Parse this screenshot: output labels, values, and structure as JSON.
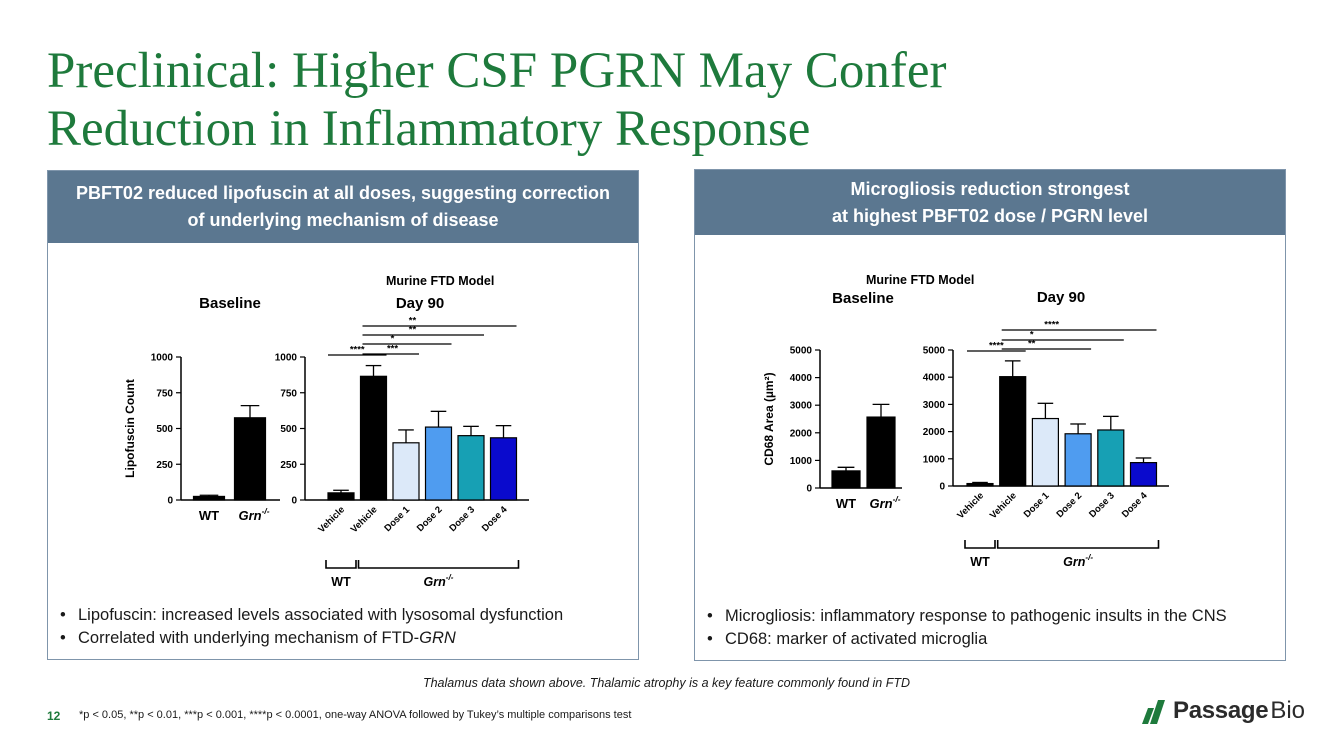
{
  "slide": {
    "title_line1": "Preclinical: Higher CSF PGRN May Confer",
    "title_line2": "Reduction in Inflammatory Response",
    "page_number": "12",
    "footnote_center": "Thalamus data shown above. Thalamic atrophy is a key feature commonly found in FTD",
    "stats_note": "*p < 0.05, **p < 0.01, ***p < 0.001, ****p < 0.0001, one-way ANOVA followed by Tukey’s multiple comparisons test",
    "logo": {
      "word1": "Passage",
      "word2": "Bio",
      "color": "#1e7a3c"
    }
  },
  "left_panel": {
    "header_line1": "PBFT02 reduced lipofuscin at all doses, suggesting correction",
    "header_line2": "of underlying mechanism of disease",
    "bullets": [
      "Lipofuscin: increased levels associated with lysosomal dysfunction",
      "Correlated with underlying mechanism of FTD-GRN"
    ]
  },
  "right_panel": {
    "header_line1": "Microgliosis reduction strongest",
    "header_line2": "at highest PBFT02 dose / PGRN level",
    "bullets": [
      "Microgliosis: inflammatory response to pathogenic insults in the CNS",
      "CD68: marker of activated microglia"
    ]
  },
  "chart_data": [
    {
      "type": "bar",
      "id": "lipofuscin-baseline",
      "suptitle": "Murine FTD Model",
      "title": "Baseline",
      "ylabel": "Lipofuscin Count",
      "ylim": [
        0,
        1000
      ],
      "yticks": [
        0,
        250,
        500,
        750,
        1000
      ],
      "categories": [
        "WT",
        "Grn-/-"
      ],
      "values": [
        25,
        575
      ],
      "errors": [
        8,
        85
      ],
      "colors": [
        "#000000",
        "#000000"
      ]
    },
    {
      "type": "bar",
      "id": "lipofuscin-day90",
      "title": "Day 90",
      "ylabel": "",
      "ylim": [
        0,
        1000
      ],
      "yticks": [
        0,
        250,
        500,
        750,
        1000
      ],
      "categories": [
        "Vehicle",
        "Vehicle",
        "Dose 1",
        "Dose 2",
        "Dose 3",
        "Dose 4"
      ],
      "values": [
        50,
        865,
        400,
        510,
        450,
        435
      ],
      "errors": [
        18,
        75,
        90,
        110,
        65,
        85
      ],
      "colors": [
        "#000000",
        "#000000",
        "#dce9f9",
        "#4f9cf0",
        "#17a0b4",
        "#0a0acd"
      ],
      "groups": [
        {
          "label": "WT",
          "from": 0,
          "to": 0
        },
        {
          "label": "Grn-/-",
          "from": 1,
          "to": 5
        }
      ],
      "significance": [
        {
          "from": 0,
          "to": 1,
          "label": "****"
        },
        {
          "from": 1,
          "to": 2,
          "label": "***"
        },
        {
          "from": 1,
          "to": 3,
          "label": "*"
        },
        {
          "from": 1,
          "to": 4,
          "label": "**"
        },
        {
          "from": 1,
          "to": 5,
          "label": "**"
        }
      ]
    },
    {
      "type": "bar",
      "id": "cd68-baseline",
      "suptitle": "Murine FTD Model",
      "title": "Baseline",
      "ylabel": "CD68 Area (µm²)",
      "ylim": [
        0,
        5000
      ],
      "yticks": [
        0,
        1000,
        2000,
        3000,
        4000,
        5000
      ],
      "categories": [
        "WT",
        "Grn-/-"
      ],
      "values": [
        620,
        2570
      ],
      "errors": [
        130,
        460
      ],
      "colors": [
        "#000000",
        "#000000"
      ]
    },
    {
      "type": "bar",
      "id": "cd68-day90",
      "title": "Day 90",
      "ylabel": "",
      "ylim": [
        0,
        5000
      ],
      "yticks": [
        0,
        1000,
        2000,
        3000,
        4000,
        5000
      ],
      "categories": [
        "Vehicle",
        "Vehicle",
        "Dose 1",
        "Dose 2",
        "Dose 3",
        "Dose 4"
      ],
      "values": [
        90,
        4020,
        2480,
        1920,
        2060,
        860
      ],
      "errors": [
        40,
        580,
        560,
        360,
        500,
        170
      ],
      "colors": [
        "#000000",
        "#000000",
        "#dce9f9",
        "#4f9cf0",
        "#17a0b4",
        "#0a0acd"
      ],
      "groups": [
        {
          "label": "WT",
          "from": 0,
          "to": 0
        },
        {
          "label": "Grn-/-",
          "from": 1,
          "to": 5
        }
      ],
      "significance": [
        {
          "from": 0,
          "to": 1,
          "label": "****"
        },
        {
          "from": 1,
          "to": 3,
          "label": "**"
        },
        {
          "from": 1,
          "to": 4,
          "label": "*"
        },
        {
          "from": 1,
          "to": 5,
          "label": "****"
        }
      ]
    }
  ]
}
